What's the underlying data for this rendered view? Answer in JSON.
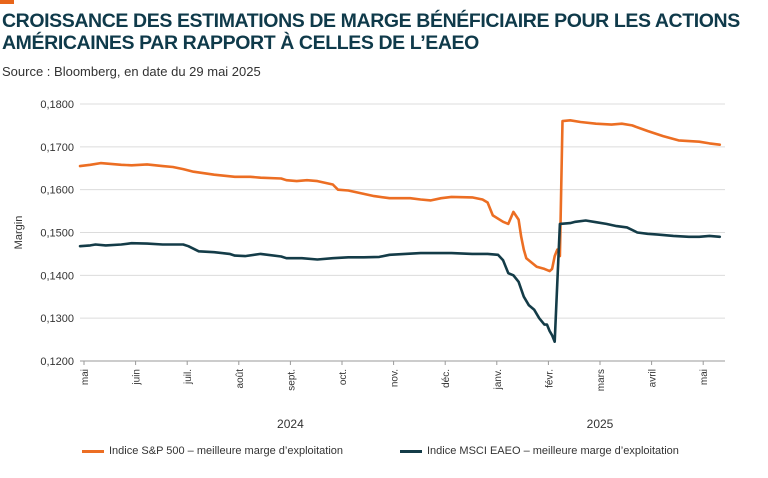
{
  "header": {
    "title": "CROISSANCE DES ESTIMATIONS DE MARGE BÉNÉFICIAIRE POUR LES ACTIONS AMÉRICAINES PAR RAPPORT À CELLES DE L’EAEO",
    "source": "Source : Bloomberg, en date du 29 mai 2025"
  },
  "colors": {
    "accent": "#e8651a",
    "sp500": "#ec6e23",
    "eafe": "#143c48",
    "grid": "#dcdcdc"
  },
  "chart_data": {
    "type": "line",
    "ylabel": "Margin",
    "ylim": [
      0.12,
      0.18
    ],
    "yticks": [
      "0,1200",
      "0,1300",
      "0,1400",
      "0,1500",
      "0,1600",
      "0,1700",
      "0,1800"
    ],
    "xlim": [
      0,
      12.5
    ],
    "xticks": [
      {
        "label": "mai",
        "x": 0
      },
      {
        "label": "juin",
        "x": 1
      },
      {
        "label": "juil.",
        "x": 2
      },
      {
        "label": "août",
        "x": 3
      },
      {
        "label": "sept.",
        "x": 4
      },
      {
        "label": "oct.",
        "x": 5
      },
      {
        "label": "nov.",
        "x": 6
      },
      {
        "label": "déc.",
        "x": 7
      },
      {
        "label": "janv.",
        "x": 8
      },
      {
        "label": "févr.",
        "x": 9
      },
      {
        "label": "mars",
        "x": 10
      },
      {
        "label": "avril",
        "x": 11
      },
      {
        "label": "mai",
        "x": 12
      }
    ],
    "year_labels": [
      {
        "label": "2024",
        "x": 4
      },
      {
        "label": "2025",
        "x": 10
      }
    ],
    "series": [
      {
        "name": "Indice S&P 500 – meilleure marge d’exploitation",
        "x": [
          0,
          0.2,
          0.4,
          0.8,
          1.0,
          1.3,
          1.6,
          1.8,
          2.0,
          2.2,
          2.6,
          3.0,
          3.3,
          3.5,
          3.9,
          4.0,
          4.2,
          4.4,
          4.6,
          4.9,
          5.0,
          5.2,
          5.5,
          5.7,
          6.0,
          6.4,
          6.6,
          6.8,
          7.0,
          7.2,
          7.6,
          7.8,
          7.9,
          8.0,
          8.2,
          8.3,
          8.4,
          8.5,
          8.55,
          8.6,
          8.65,
          8.75,
          8.85,
          9.0,
          9.1,
          9.15,
          9.2,
          9.25,
          9.3,
          9.35,
          9.5,
          9.7,
          10.0,
          10.3,
          10.5,
          10.7,
          11.0,
          11.3,
          11.6,
          12.0,
          12.2,
          12.4
        ],
        "values": [
          0.1655,
          0.1658,
          0.1662,
          0.1658,
          0.1657,
          0.1659,
          0.1655,
          0.1653,
          0.1648,
          0.1642,
          0.1635,
          0.163,
          0.163,
          0.1628,
          0.1626,
          0.1622,
          0.162,
          0.1622,
          0.162,
          0.1612,
          0.16,
          0.1598,
          0.159,
          0.1585,
          0.158,
          0.158,
          0.1577,
          0.1575,
          0.158,
          0.1583,
          0.1582,
          0.1577,
          0.157,
          0.154,
          0.1525,
          0.152,
          0.1548,
          0.153,
          0.149,
          0.146,
          0.144,
          0.143,
          0.142,
          0.1415,
          0.141,
          0.1415,
          0.1445,
          0.146,
          0.1445,
          0.176,
          0.1762,
          0.1758,
          0.1754,
          0.1752,
          0.1754,
          0.175,
          0.1737,
          0.1725,
          0.1715,
          0.1712,
          0.1708,
          0.1705
        ]
      },
      {
        "name": "Indice MSCI EAEO – meilleure marge d’exploitation",
        "x": [
          0,
          0.2,
          0.3,
          0.5,
          0.8,
          1.0,
          1.3,
          1.6,
          1.8,
          2.0,
          2.1,
          2.3,
          2.6,
          2.9,
          3.0,
          3.2,
          3.5,
          3.9,
          4.0,
          4.3,
          4.6,
          4.9,
          5.2,
          5.5,
          5.8,
          6.0,
          6.3,
          6.6,
          6.9,
          7.2,
          7.6,
          7.9,
          8.1,
          8.2,
          8.3,
          8.4,
          8.5,
          8.6,
          8.7,
          8.8,
          8.9,
          9.0,
          9.05,
          9.1,
          9.15,
          9.2,
          9.3,
          9.5,
          9.6,
          9.8,
          10.0,
          10.2,
          10.4,
          10.6,
          10.8,
          11.0,
          11.2,
          11.5,
          11.8,
          12.0,
          12.2,
          12.4
        ],
        "values": [
          0.1468,
          0.147,
          0.1472,
          0.147,
          0.1472,
          0.1475,
          0.1474,
          0.1472,
          0.1472,
          0.1472,
          0.1468,
          0.1456,
          0.1454,
          0.145,
          0.1446,
          0.1445,
          0.145,
          0.1444,
          0.144,
          0.144,
          0.1437,
          0.144,
          0.1442,
          0.1442,
          0.1443,
          0.1448,
          0.145,
          0.1452,
          0.1452,
          0.1452,
          0.145,
          0.145,
          0.1448,
          0.1435,
          0.1405,
          0.14,
          0.1385,
          0.135,
          0.133,
          0.132,
          0.13,
          0.1285,
          0.1285,
          0.127,
          0.126,
          0.1245,
          0.152,
          0.1522,
          0.1525,
          0.1528,
          0.1524,
          0.152,
          0.1515,
          0.1512,
          0.15,
          0.1497,
          0.1495,
          0.1492,
          0.149,
          0.149,
          0.1492,
          0.149
        ]
      }
    ]
  }
}
